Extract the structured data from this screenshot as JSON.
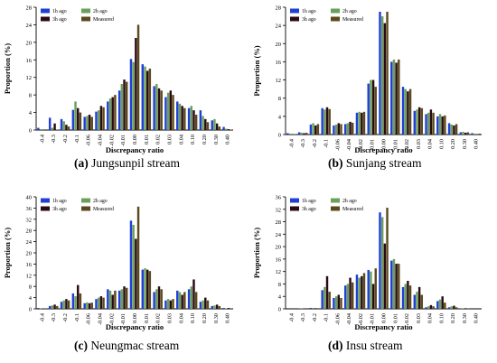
{
  "colors": {
    "1h ago": "#1f3fd6",
    "2h ago": "#6aa05a",
    "3h ago": "#2a0a14",
    "Measured": "#5c4a1e"
  },
  "chart_data": [
    {
      "type": "bar",
      "caption_letter": "(a)",
      "caption_text": "Jungsunpil stream",
      "xlabel": "Discrepancy ratio",
      "ylabel": "Proportion (%)",
      "ylim": [
        0,
        28
      ],
      "yticks": [
        0,
        4,
        8,
        12,
        16,
        20,
        24,
        28
      ],
      "legend": [
        "1h ago",
        "2h ago",
        "3h ago",
        "Measured"
      ],
      "categories": [
        "-0.4",
        "-0.3",
        "-0.2",
        "-0.1",
        "-0.06",
        "-0.04",
        "-0.02",
        "-0.01",
        "0.00",
        "0.01",
        "0.02",
        "0.03",
        "0.04",
        "0.10",
        "0.20",
        "0.30",
        "0.40"
      ],
      "series": [
        {
          "name": "1h ago",
          "values": [
            0.5,
            2.8,
            2.5,
            4.6,
            3.0,
            4.2,
            6.5,
            9.0,
            16.2,
            15.0,
            10.0,
            7.5,
            6.5,
            5.0,
            4.5,
            2.2,
            0.7
          ]
        },
        {
          "name": "2h ago",
          "values": [
            0.2,
            0.5,
            2.0,
            6.5,
            3.2,
            4.5,
            7.2,
            10.5,
            15.5,
            14.5,
            10.5,
            8.5,
            6.0,
            5.5,
            3.2,
            2.5,
            0.3
          ]
        },
        {
          "name": "3h ago",
          "values": [
            0.1,
            1.5,
            1.2,
            5.0,
            3.5,
            5.5,
            7.5,
            11.5,
            21.0,
            13.5,
            9.5,
            9.0,
            5.5,
            4.5,
            2.5,
            1.5,
            0.2
          ]
        },
        {
          "name": "Measured",
          "values": [
            0.0,
            0.1,
            0.8,
            4.0,
            3.0,
            5.2,
            8.0,
            11.0,
            24.0,
            14.0,
            9.0,
            8.0,
            5.0,
            3.5,
            1.8,
            0.8,
            0.1
          ]
        }
      ]
    },
    {
      "type": "bar",
      "caption_letter": "(b)",
      "caption_text": "Sunjang stream",
      "xlabel": "Discrepancy ratio",
      "ylabel": "Proportion (%)",
      "ylim": [
        0,
        28
      ],
      "yticks": [
        0,
        4,
        8,
        12,
        16,
        20,
        24,
        28
      ],
      "legend": [
        "1h ago",
        "2h ago",
        "3h ago",
        "Measured"
      ],
      "categories": [
        "-0.4",
        "-0.3",
        "-0.2",
        "-0.1",
        "-0.06",
        "-0.04",
        "-0.02",
        "-0.01",
        "0.00",
        "0.01",
        "0.02",
        "0.03",
        "0.04",
        "0.10",
        "0.20",
        "0.30",
        "0.40"
      ],
      "series": [
        {
          "name": "1h ago",
          "values": [
            0.3,
            0.5,
            2.2,
            5.8,
            2.0,
            2.3,
            4.8,
            11.2,
            27.0,
            16.0,
            10.5,
            5.2,
            4.5,
            4.0,
            2.5,
            0.5,
            0.3
          ]
        },
        {
          "name": "2h ago",
          "values": [
            0.2,
            0.4,
            2.5,
            5.5,
            2.2,
            2.5,
            5.0,
            12.0,
            26.0,
            16.5,
            10.0,
            5.5,
            4.8,
            4.5,
            2.2,
            0.6,
            0.2
          ]
        },
        {
          "name": "3h ago",
          "values": [
            0.1,
            0.3,
            2.0,
            6.0,
            2.5,
            2.8,
            4.8,
            12.0,
            24.5,
            15.8,
            9.5,
            6.0,
            5.5,
            4.0,
            2.0,
            0.4,
            0.1
          ]
        },
        {
          "name": "Measured",
          "values": [
            0.1,
            0.4,
            2.3,
            5.6,
            2.3,
            2.6,
            5.0,
            10.5,
            27.0,
            16.5,
            10.0,
            5.8,
            4.8,
            4.2,
            2.3,
            0.5,
            0.2
          ]
        }
      ]
    },
    {
      "type": "bar",
      "caption_letter": "(c)",
      "caption_text": "Neungmac stream",
      "xlabel": "Discrepancy ratio",
      "ylabel": "Proportion (%)",
      "ylim": [
        0,
        40
      ],
      "yticks": [
        0,
        4,
        8,
        12,
        16,
        20,
        24,
        28,
        32,
        36,
        40
      ],
      "legend": [
        "1h ago",
        "2h ago",
        "3h ago",
        "Measured"
      ],
      "categories": [
        "-0.4",
        "-0.3",
        "-0.2",
        "-0.1",
        "-0.06",
        "-0.04",
        "-0.02",
        "-0.01",
        "0.00",
        "0.01",
        "0.02",
        "0.03",
        "0.04",
        "0.10",
        "0.20",
        "0.30",
        "0.40"
      ],
      "series": [
        {
          "name": "1h ago",
          "values": [
            0.3,
            1.0,
            2.5,
            5.5,
            2.0,
            3.5,
            7.0,
            6.5,
            31.5,
            14.0,
            6.0,
            3.0,
            6.5,
            7.0,
            2.5,
            1.0,
            0.3
          ]
        },
        {
          "name": "2h ago",
          "values": [
            0.2,
            1.2,
            3.0,
            4.5,
            2.3,
            4.0,
            6.5,
            7.0,
            30.0,
            14.5,
            7.0,
            3.5,
            6.0,
            8.0,
            3.0,
            1.2,
            0.2
          ]
        },
        {
          "name": "3h ago",
          "values": [
            0.1,
            1.5,
            3.5,
            8.5,
            2.0,
            4.5,
            5.0,
            8.0,
            25.0,
            14.0,
            8.0,
            3.0,
            5.0,
            10.5,
            4.0,
            1.5,
            0.3
          ]
        },
        {
          "name": "Measured",
          "values": [
            0.1,
            1.0,
            3.0,
            5.5,
            2.2,
            4.0,
            6.5,
            7.5,
            36.5,
            13.5,
            7.0,
            3.5,
            6.0,
            6.0,
            3.0,
            1.0,
            0.2
          ]
        }
      ]
    },
    {
      "type": "bar",
      "caption_letter": "(d)",
      "caption_text": "Insu stream",
      "xlabel": "Discrepancy ratio",
      "ylabel": "Proportion (%)",
      "ylim": [
        0,
        36
      ],
      "yticks": [
        0,
        4,
        8,
        12,
        16,
        20,
        24,
        28,
        32,
        36
      ],
      "legend": [
        "1h ago",
        "2h ago",
        "3h ago",
        "Measured"
      ],
      "categories": [
        "-0.4",
        "-0.3",
        "-0.2",
        "-0.1",
        "-0.06",
        "-0.04",
        "-0.02",
        "-0.01",
        "0.00",
        "0.01",
        "0.02",
        "0.03",
        "0.04",
        "0.10",
        "0.20",
        "0.30",
        "0.40"
      ],
      "series": [
        {
          "name": "1h ago",
          "values": [
            0.0,
            0.1,
            0.3,
            6.0,
            3.5,
            7.5,
            11.0,
            12.5,
            31.0,
            15.5,
            7.0,
            4.5,
            0.5,
            2.5,
            0.5,
            0.1,
            0.0
          ]
        },
        {
          "name": "2h ago",
          "values": [
            0.0,
            0.1,
            0.3,
            7.0,
            4.0,
            8.0,
            10.0,
            12.0,
            29.5,
            16.0,
            8.0,
            5.5,
            0.8,
            3.0,
            0.8,
            0.1,
            0.0
          ]
        },
        {
          "name": "3h ago",
          "values": [
            0.0,
            0.1,
            0.2,
            10.5,
            4.5,
            10.0,
            10.5,
            8.0,
            21.0,
            14.5,
            9.0,
            7.0,
            1.2,
            4.0,
            1.0,
            0.2,
            0.0
          ]
        },
        {
          "name": "Measured",
          "values": [
            0.0,
            0.0,
            0.2,
            5.5,
            3.5,
            8.5,
            11.5,
            13.0,
            32.5,
            14.5,
            7.5,
            4.5,
            0.8,
            2.0,
            0.5,
            0.1,
            0.0
          ]
        }
      ]
    }
  ]
}
